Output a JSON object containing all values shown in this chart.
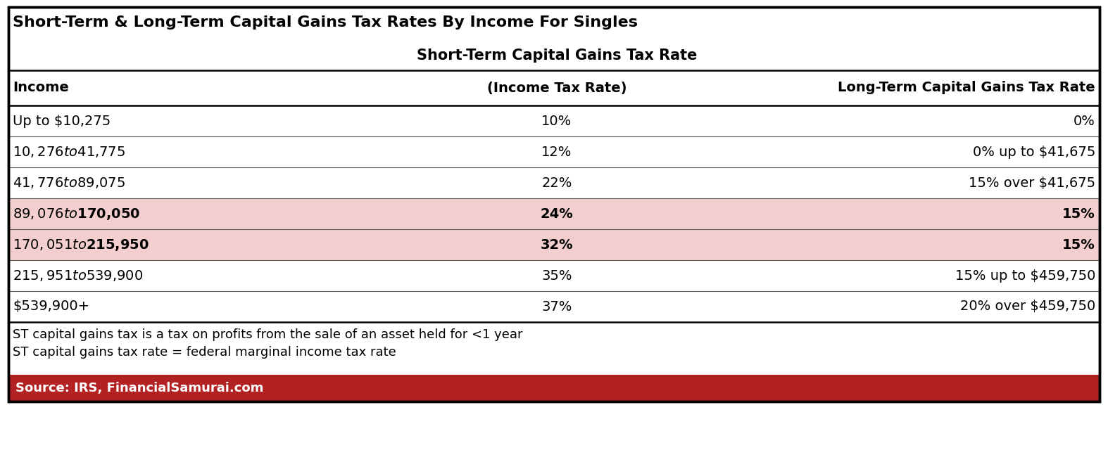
{
  "title": "Short-Term & Long-Term Capital Gains Tax Rates By Income For Singles",
  "subheader": "Short-Term Capital Gains Tax Rate",
  "col1_header": "Income",
  "col2_header": "(Income Tax Rate)",
  "col3_header": "Long-Term Capital Gains Tax Rate",
  "rows": [
    [
      "Up to $10,275",
      "10%",
      "0%"
    ],
    [
      "$10,276 to $41,775",
      "12%",
      "0% up to $41,675"
    ],
    [
      "$41,776 to $89,075",
      "22%",
      "15% over $41,675"
    ],
    [
      "$89,076 to $170,050",
      "24%",
      "15%"
    ],
    [
      "$170,051 to $215,950",
      "32%",
      "15%"
    ],
    [
      "$215,951 to $539,900",
      "35%",
      "15% up to $459,750"
    ],
    [
      "$539,900+",
      "37%",
      "20% over $459,750"
    ]
  ],
  "highlighted_rows": [
    3,
    4
  ],
  "highlight_color": "#F2CECE",
  "footer_lines": [
    "ST capital gains tax is a tax on profits from the sale of an asset held for <1 year",
    "ST capital gains tax rate = federal marginal income tax rate"
  ],
  "source_text": "Source: IRS, FinancialSamurai.com",
  "source_bg_color": "#B22222",
  "source_text_color": "#FFFFFF",
  "border_color": "#000000",
  "title_fontsize": 16,
  "subheader_fontsize": 15,
  "header_fontsize": 14,
  "cell_fontsize": 14,
  "footer_fontsize": 13,
  "source_fontsize": 13
}
